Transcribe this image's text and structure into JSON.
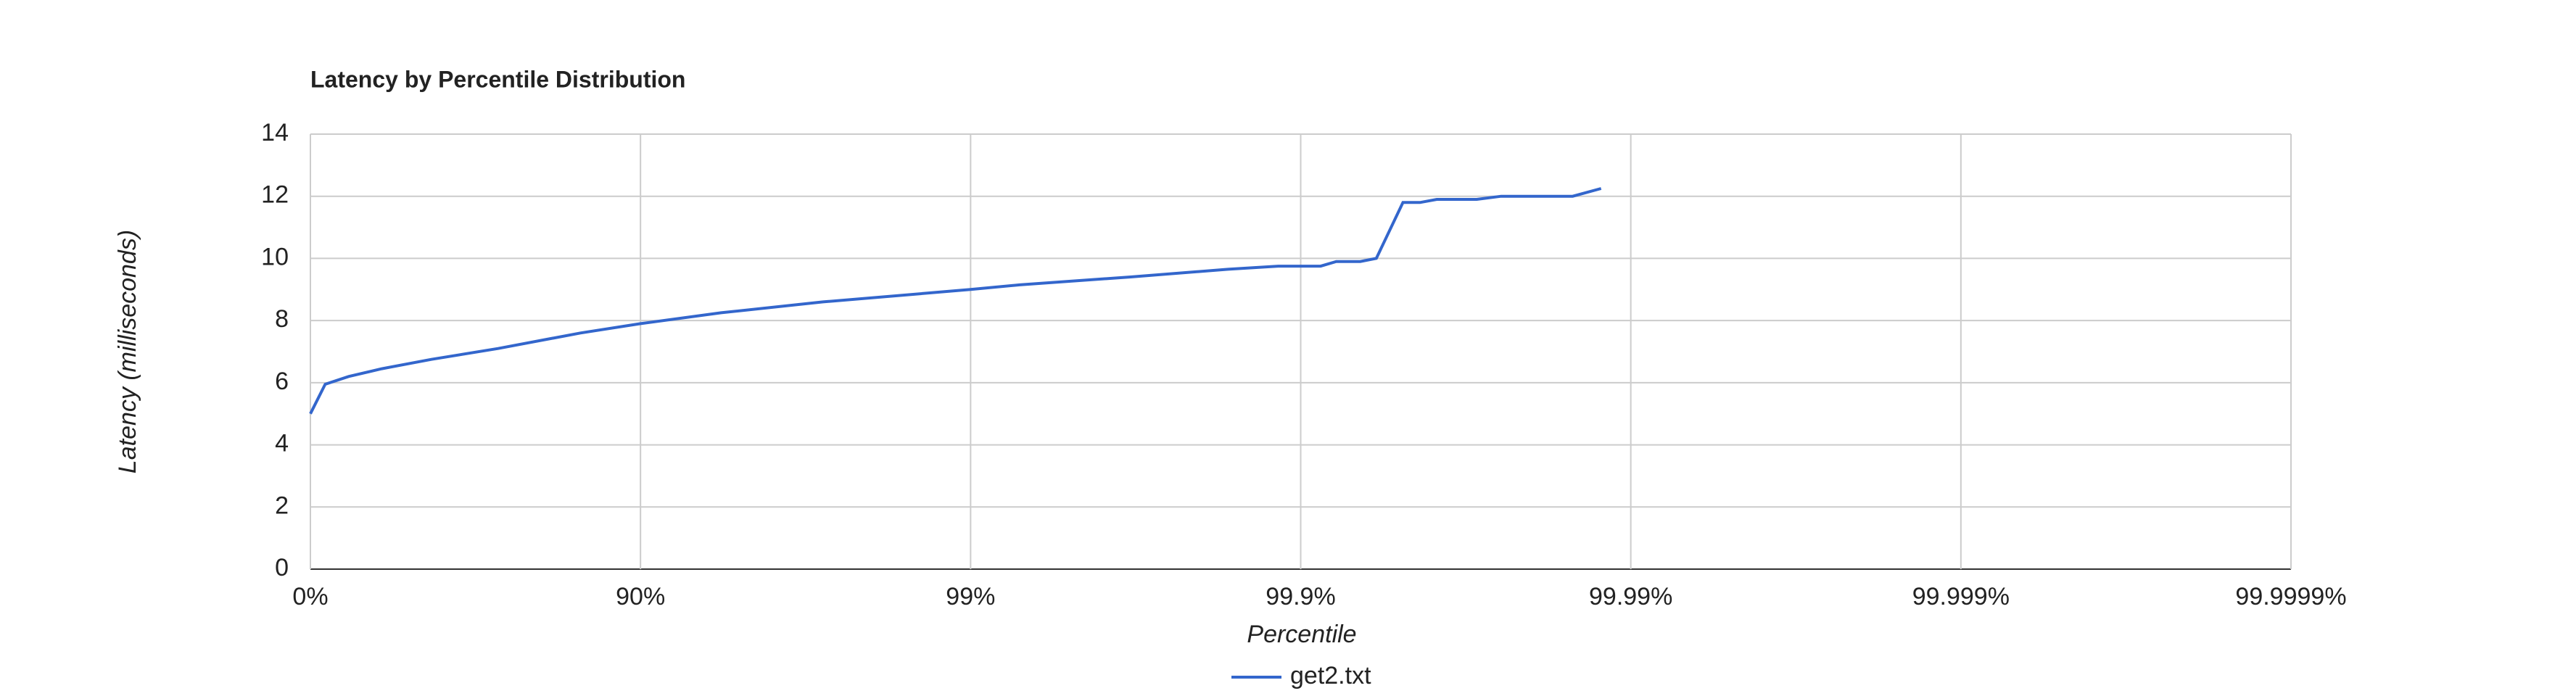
{
  "chart_data": {
    "type": "line",
    "title": "Latency by Percentile Distribution",
    "x_label": "Percentile",
    "y_label": "Latency (milliseconds)",
    "x_scale": "percentile-log",
    "x": [
      0,
      9.8,
      23.4,
      39.2,
      57,
      73,
      84.8,
      90,
      94.3,
      97.2,
      99,
      99.29,
      99.67,
      99.834,
      99.883,
      99.913,
      99.922,
      99.934,
      99.941,
      99.951,
      99.9565,
      99.9613,
      99.9707,
      99.9753,
      99.985,
      99.9877
    ],
    "series": [
      {
        "name": "get2.txt",
        "color": "#3366cc",
        "values": [
          5.0,
          5.95,
          6.2,
          6.45,
          6.75,
          7.1,
          7.6,
          7.9,
          8.25,
          8.6,
          9.0,
          9.15,
          9.4,
          9.65,
          9.75,
          9.75,
          9.9,
          9.9,
          10.0,
          11.8,
          11.8,
          11.9,
          11.9,
          12.0,
          12.0,
          12.25
        ]
      }
    ],
    "xlim": [
      0,
      99.9999
    ],
    "xticks": [
      {
        "value": 0,
        "label": "0%"
      },
      {
        "value": 90,
        "label": "90%"
      },
      {
        "value": 99,
        "label": "99%"
      },
      {
        "value": 99.9,
        "label": "99.9%"
      },
      {
        "value": 99.99,
        "label": "99.99%"
      },
      {
        "value": 99.999,
        "label": "99.999%"
      },
      {
        "value": 99.9999,
        "label": "99.9999%"
      }
    ],
    "ylim": [
      0,
      14
    ],
    "yticks": [
      0,
      2,
      4,
      6,
      8,
      10,
      12,
      14
    ],
    "grid": true
  }
}
